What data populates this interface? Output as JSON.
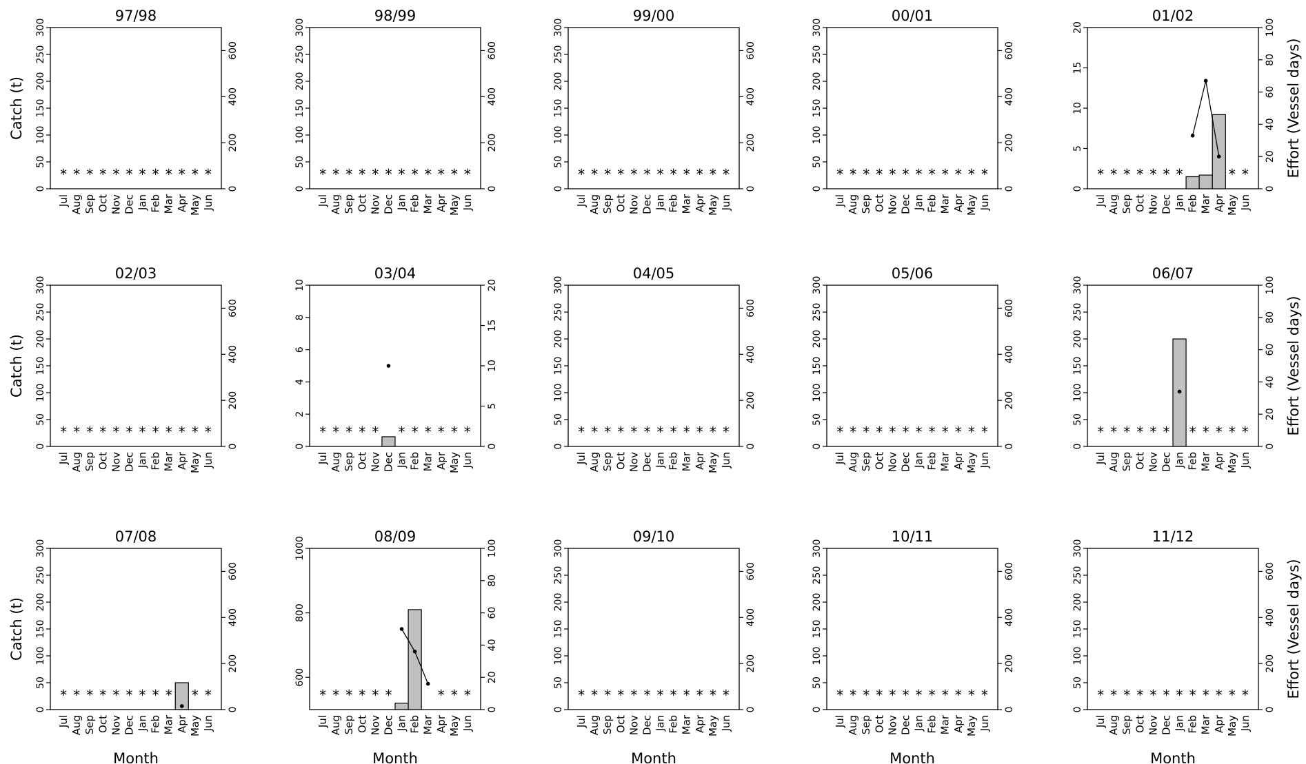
{
  "chart_data": {
    "type": "bar",
    "layout": "5 columns x 3 rows small multiples",
    "months": [
      "Jul",
      "Aug",
      "Sep",
      "Oct",
      "Nov",
      "Dec",
      "Jan",
      "Feb",
      "Mar",
      "Apr",
      "May",
      "Jun"
    ],
    "xlabel": "Month",
    "ylabel_left": "Catch (t)",
    "ylabel_right": "Effort (Vessel days)",
    "panels": [
      {
        "title": "97/98",
        "ylim": [
          0,
          300
        ],
        "yticks": [
          0,
          50,
          100,
          150,
          200,
          250,
          300
        ],
        "y2lim": [
          0,
          700
        ],
        "y2ticks": [
          0,
          200,
          400,
          600
        ],
        "catch": [
          null,
          null,
          null,
          null,
          null,
          null,
          null,
          null,
          null,
          null,
          null,
          null
        ],
        "effort": [
          null,
          null,
          null,
          null,
          null,
          null,
          null,
          null,
          null,
          null,
          null,
          null
        ],
        "no_data": [
          1,
          1,
          1,
          1,
          1,
          1,
          1,
          1,
          1,
          1,
          1,
          1
        ]
      },
      {
        "title": "98/99",
        "ylim": [
          0,
          300
        ],
        "yticks": [
          0,
          50,
          100,
          150,
          200,
          250,
          300
        ],
        "y2lim": [
          0,
          700
        ],
        "y2ticks": [
          0,
          200,
          400,
          600
        ],
        "catch": [
          null,
          null,
          null,
          null,
          null,
          null,
          null,
          null,
          null,
          null,
          null,
          null
        ],
        "effort": [
          null,
          null,
          null,
          null,
          null,
          null,
          null,
          null,
          null,
          null,
          null,
          null
        ],
        "no_data": [
          1,
          1,
          1,
          1,
          1,
          1,
          1,
          1,
          1,
          1,
          1,
          1
        ]
      },
      {
        "title": "99/00",
        "ylim": [
          0,
          300
        ],
        "yticks": [
          0,
          50,
          100,
          150,
          200,
          250,
          300
        ],
        "y2lim": [
          0,
          700
        ],
        "y2ticks": [
          0,
          200,
          400,
          600
        ],
        "catch": [
          null,
          null,
          null,
          null,
          null,
          null,
          null,
          null,
          null,
          null,
          null,
          null
        ],
        "effort": [
          null,
          null,
          null,
          null,
          null,
          null,
          null,
          null,
          null,
          null,
          null,
          null
        ],
        "no_data": [
          1,
          1,
          1,
          1,
          1,
          1,
          1,
          1,
          1,
          1,
          1,
          1
        ]
      },
      {
        "title": "00/01",
        "ylim": [
          0,
          300
        ],
        "yticks": [
          0,
          50,
          100,
          150,
          200,
          250,
          300
        ],
        "y2lim": [
          0,
          700
        ],
        "y2ticks": [
          0,
          200,
          400,
          600
        ],
        "catch": [
          null,
          null,
          null,
          null,
          null,
          null,
          null,
          null,
          null,
          null,
          null,
          null
        ],
        "effort": [
          null,
          null,
          null,
          null,
          null,
          null,
          null,
          null,
          null,
          null,
          null,
          null
        ],
        "no_data": [
          1,
          1,
          1,
          1,
          1,
          1,
          1,
          1,
          1,
          1,
          1,
          1
        ]
      },
      {
        "title": "01/02",
        "ylim": [
          0,
          20
        ],
        "yticks": [
          0,
          5,
          10,
          15,
          20
        ],
        "y2lim": [
          0,
          100
        ],
        "y2ticks": [
          0,
          20,
          40,
          60,
          80,
          100
        ],
        "catch": [
          null,
          null,
          null,
          null,
          null,
          null,
          null,
          1.5,
          1.7,
          9.2,
          null,
          null
        ],
        "effort": [
          null,
          null,
          null,
          null,
          null,
          null,
          null,
          33,
          67,
          20,
          null,
          null
        ],
        "no_data": [
          1,
          1,
          1,
          1,
          1,
          1,
          1,
          0,
          0,
          0,
          1,
          1
        ]
      },
      {
        "title": "02/03",
        "ylim": [
          0,
          300
        ],
        "yticks": [
          0,
          50,
          100,
          150,
          200,
          250,
          300
        ],
        "y2lim": [
          0,
          700
        ],
        "y2ticks": [
          0,
          200,
          400,
          600
        ],
        "catch": [
          null,
          null,
          null,
          null,
          null,
          null,
          null,
          null,
          null,
          null,
          null,
          null
        ],
        "effort": [
          null,
          null,
          null,
          null,
          null,
          null,
          null,
          null,
          null,
          null,
          null,
          null
        ],
        "no_data": [
          1,
          1,
          1,
          1,
          1,
          1,
          1,
          1,
          1,
          1,
          1,
          1
        ]
      },
      {
        "title": "03/04",
        "ylim": [
          0,
          10
        ],
        "yticks": [
          0,
          2,
          4,
          6,
          8,
          10
        ],
        "y2lim": [
          0,
          20
        ],
        "y2ticks": [
          0,
          5,
          10,
          15,
          20
        ],
        "catch": [
          null,
          null,
          null,
          null,
          null,
          0.6,
          null,
          null,
          null,
          null,
          null,
          null
        ],
        "effort": [
          null,
          null,
          null,
          null,
          null,
          10,
          null,
          null,
          null,
          null,
          null,
          null
        ],
        "no_data": [
          1,
          1,
          1,
          1,
          1,
          0,
          1,
          1,
          1,
          1,
          1,
          1
        ]
      },
      {
        "title": "04/05",
        "ylim": [
          0,
          300
        ],
        "yticks": [
          0,
          50,
          100,
          150,
          200,
          250,
          300
        ],
        "y2lim": [
          0,
          700
        ],
        "y2ticks": [
          0,
          200,
          400,
          600
        ],
        "catch": [
          null,
          null,
          null,
          null,
          null,
          null,
          null,
          null,
          null,
          null,
          null,
          null
        ],
        "effort": [
          null,
          null,
          null,
          null,
          null,
          null,
          null,
          null,
          null,
          null,
          null,
          null
        ],
        "no_data": [
          1,
          1,
          1,
          1,
          1,
          1,
          1,
          1,
          1,
          1,
          1,
          1
        ]
      },
      {
        "title": "05/06",
        "ylim": [
          0,
          300
        ],
        "yticks": [
          0,
          50,
          100,
          150,
          200,
          250,
          300
        ],
        "y2lim": [
          0,
          700
        ],
        "y2ticks": [
          0,
          200,
          400,
          600
        ],
        "catch": [
          null,
          null,
          null,
          null,
          null,
          null,
          null,
          null,
          null,
          null,
          null,
          null
        ],
        "effort": [
          null,
          null,
          null,
          null,
          null,
          null,
          null,
          null,
          null,
          null,
          null,
          null
        ],
        "no_data": [
          1,
          1,
          1,
          1,
          1,
          1,
          1,
          1,
          1,
          1,
          1,
          1
        ]
      },
      {
        "title": "06/07",
        "ylim": [
          0,
          300
        ],
        "yticks": [
          0,
          50,
          100,
          150,
          200,
          250,
          300
        ],
        "y2lim": [
          0,
          100
        ],
        "y2ticks": [
          0,
          20,
          40,
          60,
          80,
          100
        ],
        "catch": [
          null,
          null,
          null,
          null,
          null,
          null,
          200,
          null,
          null,
          null,
          null,
          null
        ],
        "effort": [
          null,
          null,
          null,
          null,
          null,
          null,
          34,
          null,
          null,
          null,
          null,
          null
        ],
        "no_data": [
          1,
          1,
          1,
          1,
          1,
          1,
          0,
          1,
          1,
          1,
          1,
          1
        ]
      },
      {
        "title": "07/08",
        "ylim": [
          0,
          300
        ],
        "yticks": [
          0,
          50,
          100,
          150,
          200,
          250,
          300
        ],
        "y2lim": [
          0,
          700
        ],
        "y2ticks": [
          0,
          200,
          400,
          600
        ],
        "catch": [
          null,
          null,
          null,
          null,
          null,
          null,
          null,
          null,
          null,
          50,
          null,
          null
        ],
        "effort": [
          null,
          null,
          null,
          null,
          null,
          null,
          null,
          null,
          null,
          15,
          null,
          null
        ],
        "no_data": [
          1,
          1,
          1,
          1,
          1,
          1,
          1,
          1,
          1,
          0,
          1,
          1
        ]
      },
      {
        "title": "08/09",
        "ylim": [
          500,
          1000
        ],
        "yticks": [
          600,
          800,
          1000
        ],
        "y2lim": [
          0,
          100
        ],
        "y2ticks": [
          0,
          20,
          40,
          60,
          80,
          100
        ],
        "catch": [
          null,
          null,
          null,
          null,
          null,
          null,
          520,
          810,
          null,
          null,
          null,
          null
        ],
        "effort": [
          null,
          null,
          null,
          null,
          null,
          null,
          50,
          36,
          16,
          null,
          null,
          null
        ],
        "no_data": [
          1,
          1,
          1,
          1,
          1,
          1,
          0,
          0,
          0,
          1,
          1,
          1
        ]
      },
      {
        "title": "09/10",
        "ylim": [
          0,
          300
        ],
        "yticks": [
          0,
          50,
          100,
          150,
          200,
          250,
          300
        ],
        "y2lim": [
          0,
          700
        ],
        "y2ticks": [
          0,
          200,
          400,
          600
        ],
        "catch": [
          null,
          null,
          null,
          null,
          null,
          null,
          null,
          null,
          null,
          null,
          null,
          null
        ],
        "effort": [
          null,
          null,
          null,
          null,
          null,
          null,
          null,
          null,
          null,
          null,
          null,
          null
        ],
        "no_data": [
          1,
          1,
          1,
          1,
          1,
          1,
          1,
          1,
          1,
          1,
          1,
          1
        ]
      },
      {
        "title": "10/11",
        "ylim": [
          0,
          300
        ],
        "yticks": [
          0,
          50,
          100,
          150,
          200,
          250,
          300
        ],
        "y2lim": [
          0,
          700
        ],
        "y2ticks": [
          0,
          200,
          400,
          600
        ],
        "catch": [
          null,
          null,
          null,
          null,
          null,
          null,
          null,
          null,
          null,
          null,
          null,
          null
        ],
        "effort": [
          null,
          null,
          null,
          null,
          null,
          null,
          null,
          null,
          null,
          null,
          null,
          null
        ],
        "no_data": [
          1,
          1,
          1,
          1,
          1,
          1,
          1,
          1,
          1,
          1,
          1,
          1
        ]
      },
      {
        "title": "11/12",
        "ylim": [
          0,
          300
        ],
        "yticks": [
          0,
          50,
          100,
          150,
          200,
          250,
          300
        ],
        "y2lim": [
          0,
          700
        ],
        "y2ticks": [
          0,
          200,
          400,
          600
        ],
        "catch": [
          null,
          null,
          null,
          null,
          null,
          null,
          null,
          null,
          null,
          null,
          null,
          null
        ],
        "effort": [
          null,
          null,
          null,
          null,
          null,
          null,
          null,
          null,
          null,
          null,
          null,
          null
        ],
        "no_data": [
          1,
          1,
          1,
          1,
          1,
          1,
          1,
          1,
          1,
          1,
          1,
          1
        ]
      }
    ],
    "bar_color": "#c0c0c0",
    "no_data_marker": "*",
    "grid": false
  }
}
